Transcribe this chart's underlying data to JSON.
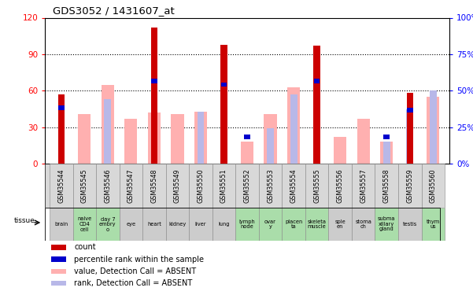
{
  "title": "GDS3052 / 1431607_at",
  "samples": [
    "GSM35544",
    "GSM35545",
    "GSM35546",
    "GSM35547",
    "GSM35548",
    "GSM35549",
    "GSM35550",
    "GSM35551",
    "GSM35552",
    "GSM35553",
    "GSM35554",
    "GSM35555",
    "GSM35556",
    "GSM35557",
    "GSM35558",
    "GSM35559",
    "GSM35560"
  ],
  "tissues": [
    "brain",
    "naive\nCD4\ncell",
    "day 7\nembry\no",
    "eye",
    "heart",
    "kidney",
    "liver",
    "lung",
    "lymph\nnode",
    "ovar\ny",
    "placen\nta",
    "skeleta\nmuscle",
    "sple\nen",
    "stoma\nch",
    "subma\nxillary\ngland",
    "testis",
    "thym\nus"
  ],
  "tissue_green": [
    false,
    true,
    true,
    false,
    false,
    false,
    false,
    false,
    true,
    true,
    true,
    true,
    false,
    false,
    true,
    false,
    true
  ],
  "count_values": [
    57,
    0,
    0,
    0,
    112,
    0,
    0,
    98,
    0,
    0,
    0,
    97,
    0,
    0,
    0,
    58,
    0
  ],
  "absent_value_heights": [
    0,
    41,
    65,
    37,
    42,
    41,
    43,
    0,
    18,
    41,
    63,
    0,
    22,
    37,
    18,
    0,
    55
  ],
  "absent_rank_heights": [
    0,
    0,
    53,
    0,
    0,
    0,
    43,
    63,
    0,
    29,
    57,
    0,
    0,
    0,
    18,
    45,
    60
  ],
  "percentile_heights": [
    46,
    0,
    0,
    0,
    68,
    0,
    0,
    65,
    22,
    0,
    0,
    68,
    0,
    0,
    22,
    44,
    0
  ],
  "ylim_left": [
    0,
    120
  ],
  "ylim_right": [
    0,
    100
  ],
  "yticks_left": [
    0,
    30,
    60,
    90,
    120
  ],
  "yticks_right": [
    0,
    25,
    50,
    75,
    100
  ],
  "ytick_labels_left": [
    "0",
    "30",
    "60",
    "90",
    "120"
  ],
  "ytick_labels_right": [
    "0%",
    "25%",
    "50%",
    "75%",
    "100%"
  ],
  "color_count": "#cc0000",
  "color_percentile": "#0000cc",
  "color_absent_value": "#ffb0b0",
  "color_absent_rank": "#b8b8e8",
  "color_tissue_green": "#aaddaa",
  "color_tissue_gray": "#cccccc",
  "color_gsm_bg": "#d8d8d8"
}
